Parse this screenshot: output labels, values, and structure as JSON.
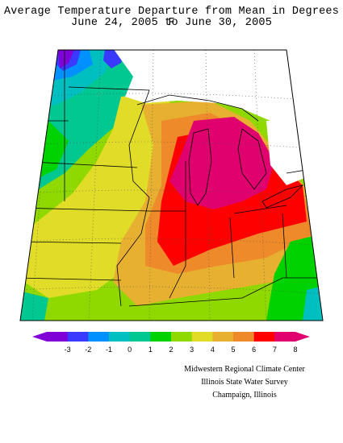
{
  "title": {
    "line1": "Average Temperature Departure from Mean in Degrees F",
    "line2": "June 24, 2005 to June 30, 2005"
  },
  "legend": {
    "labels": [
      "-3",
      "-2",
      "-1",
      "0",
      "1",
      "2",
      "3",
      "4",
      "5",
      "6",
      "7",
      "8"
    ],
    "colors": [
      "#8000d8",
      "#3a3aff",
      "#0090ff",
      "#00bfc0",
      "#00c890",
      "#00d200",
      "#8fd800",
      "#e0dc28",
      "#e8b030",
      "#ee8a2a",
      "#ff0000",
      "#e0006e"
    ]
  },
  "credits": {
    "line1": "Midwestern Regional Climate Center",
    "line2": "Illinois State Water Survey",
    "line3": "Champaign, Illinois"
  },
  "map_colors": {
    "purple": "#8000d8",
    "blue": "#3a3aff",
    "cyan": "#00bfc0",
    "teal": "#00c890",
    "green": "#00d200",
    "yellowgreen": "#8fd800",
    "yellow": "#e0dc28",
    "orangelight": "#e8b030",
    "orange": "#ee8a2a",
    "red": "#ff0000",
    "magenta": "#e0006e"
  }
}
